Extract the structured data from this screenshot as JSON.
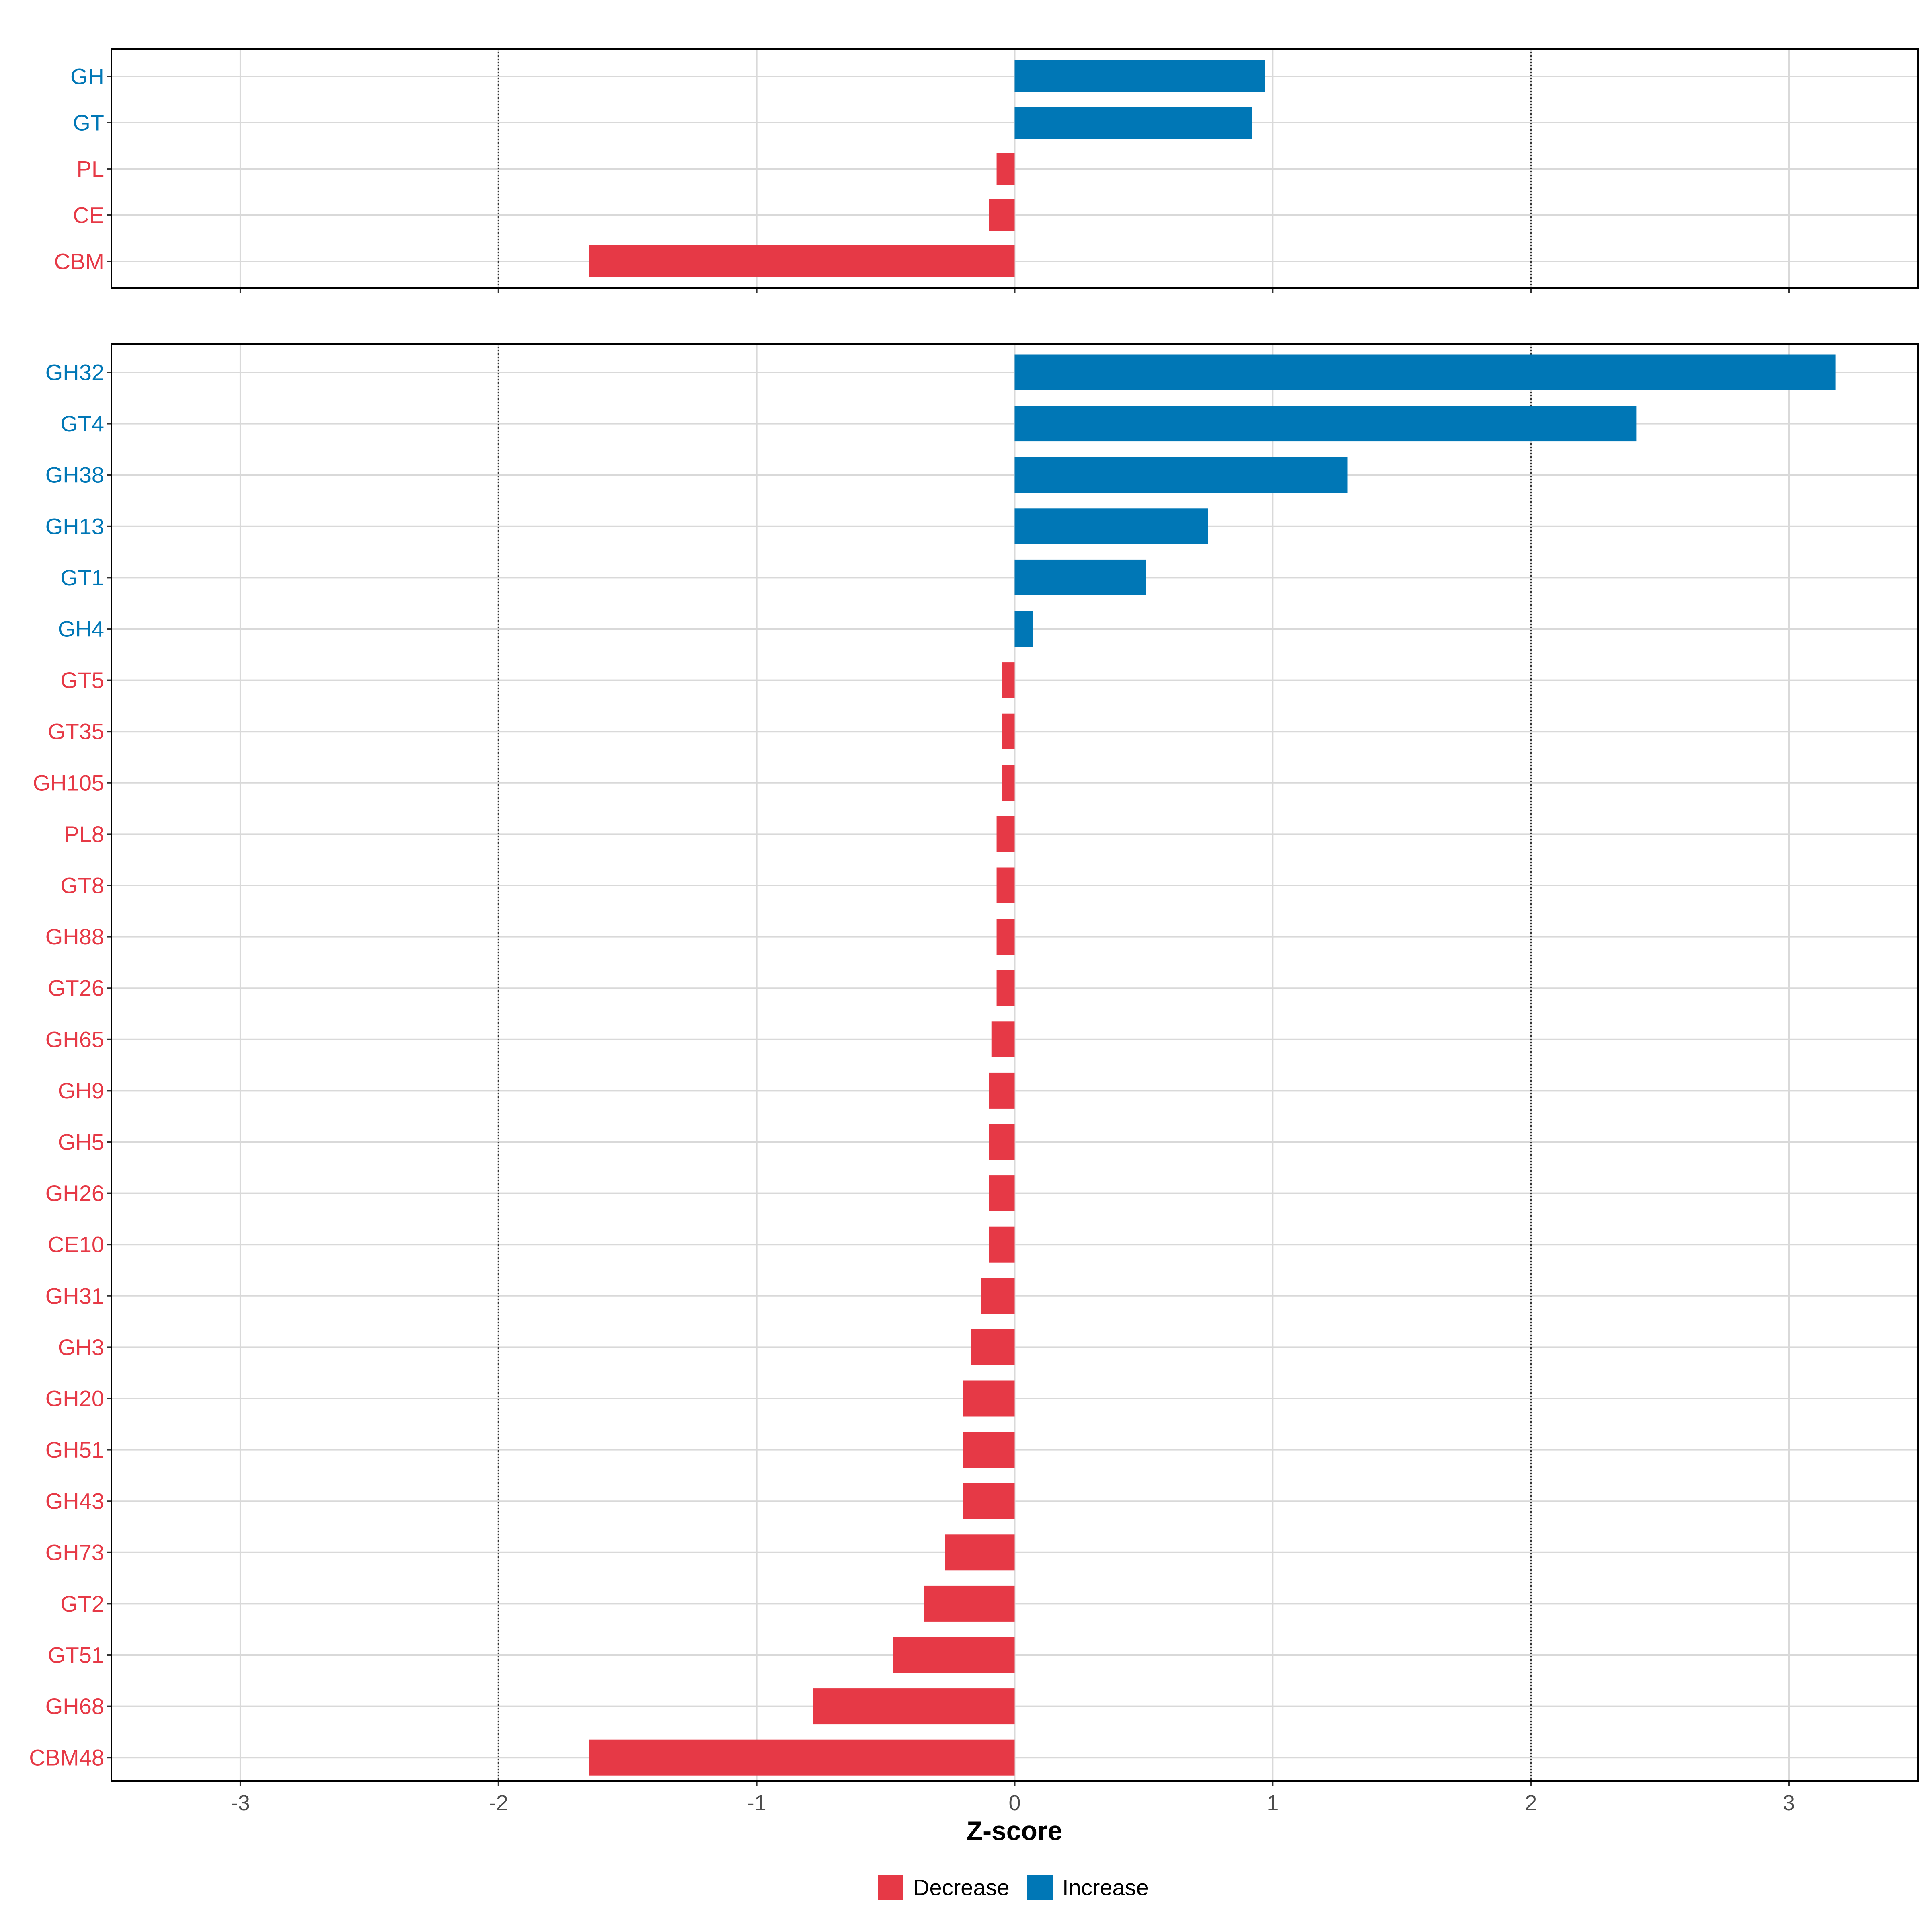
{
  "chart_data": {
    "type": "bar",
    "orientation": "horizontal",
    "xlabel": "Z-score",
    "xlim": [
      -3.5,
      3.5
    ],
    "xticks": [
      -3,
      -2,
      -1,
      0,
      1,
      2,
      3
    ],
    "reference_lines": [
      -2,
      2
    ],
    "colors": {
      "Decrease": "#E63946",
      "Increase": "#0077B6",
      "grid": "#D9D9D9",
      "reference": "#333333",
      "axis": "#000000",
      "tick_label": "#4D4D4D"
    },
    "legend": {
      "position": "bottom",
      "entries": [
        "Decrease",
        "Increase"
      ]
    },
    "panels": [
      {
        "name": "class",
        "categories": [
          "GH",
          "GT",
          "PL",
          "CE",
          "CBM"
        ],
        "values": [
          0.97,
          0.92,
          -0.07,
          -0.1,
          -1.65
        ],
        "groups": [
          "Increase",
          "Increase",
          "Decrease",
          "Decrease",
          "Decrease"
        ]
      },
      {
        "name": "family",
        "categories": [
          "GH32",
          "GT4",
          "GH38",
          "GH13",
          "GT1",
          "GH4",
          "GT5",
          "GT35",
          "GH105",
          "PL8",
          "GT8",
          "GH88",
          "GT26",
          "GH65",
          "GH9",
          "GH5",
          "GH26",
          "CE10",
          "GH31",
          "GH3",
          "GH20",
          "GH51",
          "GH43",
          "GH73",
          "GT2",
          "GT51",
          "GH68",
          "CBM48"
        ],
        "values": [
          3.18,
          2.41,
          1.29,
          0.75,
          0.51,
          0.07,
          -0.05,
          -0.05,
          -0.05,
          -0.07,
          -0.07,
          -0.07,
          -0.07,
          -0.09,
          -0.1,
          -0.1,
          -0.1,
          -0.1,
          -0.13,
          -0.17,
          -0.2,
          -0.2,
          -0.2,
          -0.27,
          -0.35,
          -0.47,
          -0.78,
          -1.65
        ],
        "groups": [
          "Increase",
          "Increase",
          "Increase",
          "Increase",
          "Increase",
          "Increase",
          "Decrease",
          "Decrease",
          "Decrease",
          "Decrease",
          "Decrease",
          "Decrease",
          "Decrease",
          "Decrease",
          "Decrease",
          "Decrease",
          "Decrease",
          "Decrease",
          "Decrease",
          "Decrease",
          "Decrease",
          "Decrease",
          "Decrease",
          "Decrease",
          "Decrease",
          "Decrease",
          "Decrease",
          "Decrease"
        ]
      }
    ]
  }
}
